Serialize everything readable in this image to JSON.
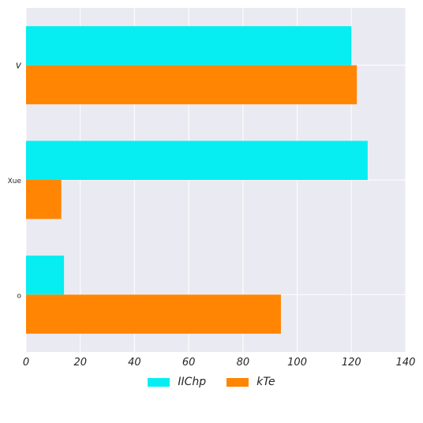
{
  "chart_data": {
    "type": "bar",
    "orientation": "horizontal",
    "categories": [
      "v",
      "Xue",
      "o"
    ],
    "series": [
      {
        "name": "IIChp",
        "color": "#06eef2",
        "values": [
          120,
          126,
          14
        ]
      },
      {
        "name": "kTe",
        "color": "#ff8503",
        "values": [
          122,
          13,
          94
        ]
      }
    ],
    "xlim": [
      0,
      140
    ],
    "xticks": [
      0,
      20,
      40,
      60,
      80,
      100,
      120,
      140
    ],
    "grid": true,
    "background": "#eaeaf2",
    "legend_position": "bottom-center"
  }
}
